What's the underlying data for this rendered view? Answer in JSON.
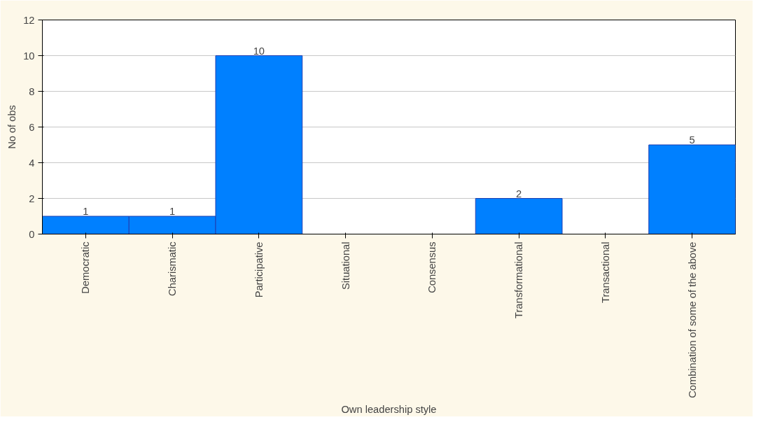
{
  "chart_data": {
    "type": "bar",
    "xlabel": "Own leadership style",
    "ylabel": "No of obs",
    "categories": [
      "Democratic",
      "Charismatic",
      "Participative",
      "Situational",
      "Consensus",
      "Transformational",
      "Transactional",
      "Combination of some of the above"
    ],
    "values": [
      1,
      1,
      10,
      0,
      0,
      2,
      0,
      5
    ],
    "value_labels": [
      "1",
      "1",
      "10",
      null,
      null,
      "2",
      null,
      "5"
    ],
    "color": "#0080ff",
    "ylim": [
      0,
      12
    ],
    "yticks": [
      0,
      2,
      4,
      6,
      8,
      10,
      12
    ],
    "grid": "y"
  }
}
